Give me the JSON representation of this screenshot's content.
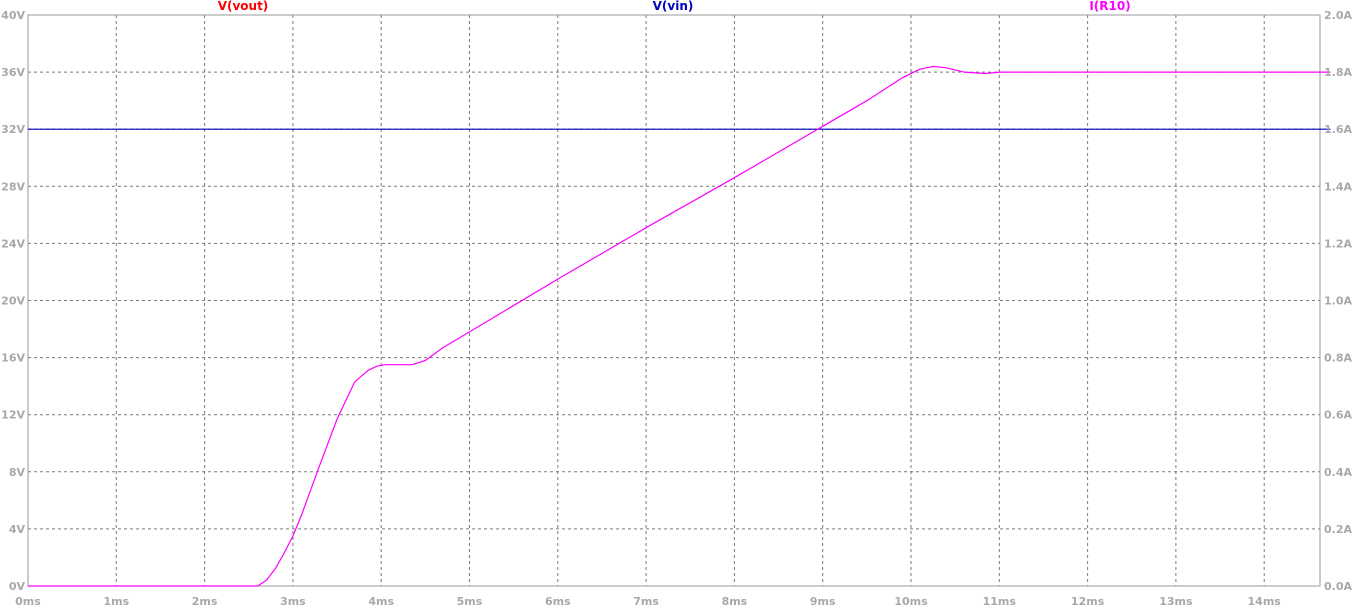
{
  "chart_data": {
    "type": "line",
    "title": "",
    "xlabel": "",
    "ylabel": "",
    "xlim": [
      0,
      14.75
    ],
    "ylim_left": [
      0,
      40
    ],
    "ylim_right": [
      0,
      2.0
    ],
    "grid": true,
    "x_ticks": [
      "0ms",
      "1ms",
      "2ms",
      "3ms",
      "4ms",
      "5ms",
      "6ms",
      "7ms",
      "8ms",
      "9ms",
      "10ms",
      "11ms",
      "12ms",
      "13ms",
      "14ms"
    ],
    "y_left_ticks": [
      "0V",
      "4V",
      "8V",
      "12V",
      "16V",
      "20V",
      "24V",
      "28V",
      "32V",
      "36V",
      "40V"
    ],
    "y_right_ticks": [
      "0.0A",
      "0.2A",
      "0.4A",
      "0.6A",
      "0.8A",
      "1.0A",
      "1.2A",
      "1.4A",
      "1.6A",
      "1.8A",
      "2.0A"
    ],
    "series": [
      {
        "name": "V(vout)",
        "color": "#ff0000",
        "axis": "left",
        "x": [],
        "y": []
      },
      {
        "name": "V(vin)",
        "color": "#0000bf",
        "axis": "left",
        "x": [
          0,
          14.75
        ],
        "y": [
          32,
          32
        ]
      },
      {
        "name": "I(R10)",
        "color": "#ff00ff",
        "axis": "left",
        "x": [
          0,
          2.6,
          2.7,
          2.8,
          2.9,
          3.0,
          3.1,
          3.3,
          3.5,
          3.7,
          3.85,
          3.95,
          4.05,
          4.2,
          4.35,
          4.5,
          4.7,
          5.0,
          6.0,
          7.0,
          8.0,
          9.0,
          9.5,
          9.9,
          10.1,
          10.25,
          10.4,
          10.6,
          10.85,
          11.0,
          11.2,
          14.75
        ],
        "y": [
          0,
          0,
          0.4,
          1.2,
          2.3,
          3.5,
          5.0,
          8.4,
          11.7,
          14.3,
          15.1,
          15.4,
          15.5,
          15.5,
          15.5,
          15.8,
          16.7,
          17.8,
          21.5,
          25.1,
          28.6,
          32.2,
          34.0,
          35.6,
          36.2,
          36.4,
          36.3,
          36.0,
          35.9,
          36.0,
          36.0,
          36.0
        ]
      }
    ]
  }
}
